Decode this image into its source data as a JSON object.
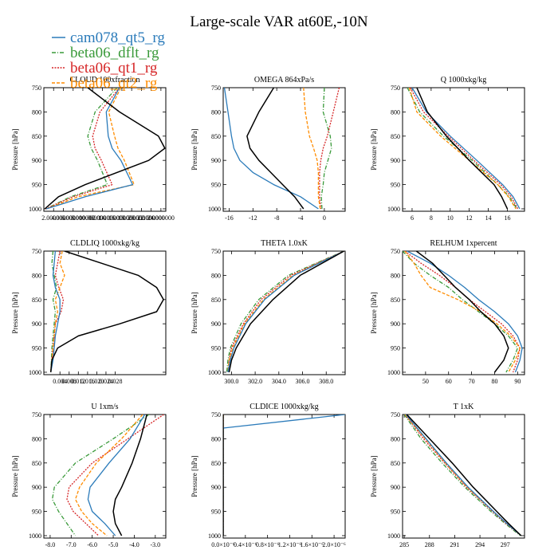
{
  "title": "Large-scale VAR at60E,-10N",
  "colors": {
    "cam078_qt5_rg": "#2b7bba",
    "beta06_dflt_rg": "#3a9a3a",
    "beta06_qt1_rg": "#d62728",
    "beta06_qt2_rg": "#ff8c00",
    "obs": "#000000"
  },
  "legend": [
    {
      "name": "cam078_qt5_rg",
      "color": "#2b7bba",
      "dash": ""
    },
    {
      "name": "beta06_dflt_rg",
      "color": "#3a9a3a",
      "dash": "5,2,1,2"
    },
    {
      "name": "beta06_qt1_rg",
      "color": "#d62728",
      "dash": "2,1.5"
    },
    {
      "name": "beta06_qt2_rg",
      "color": "#ff8c00",
      "dash": "4,2"
    }
  ],
  "chart_data": [
    {
      "type": "line",
      "title": "CLOUD  100xfraction",
      "ylabel": "Pressure [hPa]",
      "ylim": [
        1005,
        750
      ],
      "xlim": [
        0,
        2.5
      ],
      "xticks": [
        0.2,
        0.4,
        0.6,
        0.8,
        1.0,
        1.2,
        1.4,
        1.6,
        1.8,
        2.0,
        2.2,
        2.4
      ],
      "xticklabels": [
        "2.000000",
        "4.000000",
        "6.000000",
        "8.000000",
        "10.000000",
        "12.000000",
        "14.000000",
        "16.000000",
        "18.000000",
        "20.000000",
        "22.000000",
        "24.000000"
      ],
      "yticks": [
        750,
        800,
        850,
        900,
        950,
        1000
      ],
      "p": [
        750,
        800,
        850,
        875,
        900,
        950,
        975,
        1000
      ],
      "series": [
        {
          "name": "cam078_qt5_rg",
          "values": [
            1.55,
            1.28,
            1.32,
            1.4,
            1.58,
            1.82,
            0.85,
            0.05
          ]
        },
        {
          "name": "beta06_dflt_rg",
          "values": [
            1.5,
            1.05,
            0.9,
            0.97,
            1.1,
            1.3,
            0.55,
            0.04
          ]
        },
        {
          "name": "beta06_qt1_rg",
          "values": [
            1.55,
            1.15,
            1.0,
            1.05,
            1.18,
            1.4,
            0.6,
            0.04
          ]
        },
        {
          "name": "beta06_qt2_rg",
          "values": [
            1.58,
            1.33,
            1.45,
            1.52,
            1.65,
            1.85,
            0.7,
            0.05
          ]
        },
        {
          "name": "",
          "values": [
            0.9,
            1.55,
            2.35,
            2.48,
            2.15,
            0.85,
            0.3,
            0.02
          ]
        }
      ]
    },
    {
      "type": "line",
      "title": "OMEGA  864xPa/s",
      "ylabel": "Pressure [hPa]",
      "ylim": [
        1005,
        750
      ],
      "xlim": [
        -17,
        3.5
      ],
      "xticks": [
        -16,
        -12,
        -8,
        -4,
        0
      ],
      "xticklabels": [
        "-16",
        "-12",
        "-8",
        "-4",
        "0"
      ],
      "yticks": [
        750,
        800,
        850,
        900,
        950,
        1000
      ],
      "p": [
        750,
        800,
        850,
        875,
        900,
        925,
        950,
        975,
        1000
      ],
      "series": [
        {
          "name": "cam078_qt5_rg",
          "values": [
            -16.8,
            -16.2,
            -15.6,
            -15.2,
            -14.2,
            -12.0,
            -8.5,
            -4.0,
            -1.0
          ]
        },
        {
          "name": "beta06_dflt_rg",
          "values": [
            0.0,
            -0.2,
            1.0,
            1.2,
            0.6,
            0.0,
            -0.2,
            -0.5,
            -0.4
          ]
        },
        {
          "name": "beta06_qt1_rg",
          "values": [
            2.5,
            1.5,
            0.5,
            -0.2,
            -0.6,
            -0.8,
            -0.8,
            -0.8,
            -0.6
          ]
        },
        {
          "name": "beta06_qt2_rg",
          "values": [
            -3.5,
            -3.2,
            -2.5,
            -1.8,
            -1.2,
            -1.0,
            -1.0,
            -1.0,
            -0.7
          ]
        },
        {
          "name": "",
          "values": [
            -8.5,
            -11.0,
            -13.0,
            -12.5,
            -11.0,
            -9.0,
            -7.0,
            -5.0,
            -3.5
          ]
        }
      ]
    },
    {
      "type": "line",
      "title": "Q  1000xkg/kg",
      "ylabel": "Pressure [hPa]",
      "ylim": [
        1005,
        750
      ],
      "xlim": [
        5,
        17.8
      ],
      "xticks": [
        6,
        8,
        10,
        12,
        14,
        16
      ],
      "xticklabels": [
        "6",
        "8",
        "10",
        "12",
        "14",
        "16"
      ],
      "yticks": [
        750,
        800,
        850,
        900,
        950,
        1000
      ],
      "p": [
        750,
        800,
        850,
        900,
        950,
        975,
        1000
      ],
      "series": [
        {
          "name": "cam078_qt5_rg",
          "values": [
            6.0,
            7.5,
            10.0,
            12.8,
            15.5,
            16.6,
            17.3
          ]
        },
        {
          "name": "beta06_dflt_rg",
          "values": [
            5.5,
            6.8,
            9.3,
            12.3,
            15.0,
            16.2,
            17.0
          ]
        },
        {
          "name": "beta06_qt1_rg",
          "values": [
            5.8,
            7.2,
            9.8,
            12.5,
            15.3,
            16.4,
            17.1
          ]
        },
        {
          "name": "beta06_qt2_rg",
          "values": [
            5.7,
            6.5,
            9.0,
            12.0,
            15.0,
            16.1,
            16.9
          ]
        },
        {
          "name": "",
          "values": [
            6.5,
            7.6,
            9.6,
            12.0,
            14.6,
            15.4,
            16.0
          ]
        }
      ]
    },
    {
      "type": "line",
      "title": "CLDLIQ  1000xkg/kg",
      "ylabel": "Pressure [hPa]",
      "ylim": [
        1005,
        750
      ],
      "xlim": [
        -0.003,
        0.05
      ],
      "xticks": [
        0.004,
        0.008,
        0.012,
        0.016,
        0.02,
        0.024,
        0.028
      ],
      "xticklabels": [
        "0.004",
        "0.008",
        "0.012",
        "0.016",
        "0.020",
        "0.024",
        "0.028"
      ],
      "yticks": [
        750,
        800,
        850,
        900,
        950,
        1000
      ],
      "p": [
        750,
        775,
        800,
        825,
        850,
        875,
        900,
        925,
        950,
        975,
        1000
      ],
      "series": [
        {
          "name": "cam078_qt5_rg",
          "values": [
            0.002,
            0.0015,
            0.001,
            0.002,
            0.004,
            0.004,
            0.003,
            0.002,
            0.0015,
            0.001,
            0.0
          ]
        },
        {
          "name": "beta06_dflt_rg",
          "values": [
            0.001,
            0.0005,
            0.0015,
            0.0025,
            0.001,
            0.002,
            0.0015,
            0.001,
            0.0005,
            0.0003,
            0.0
          ]
        },
        {
          "name": "beta06_qt1_rg",
          "values": [
            0.004,
            0.003,
            0.002,
            0.0035,
            0.0055,
            0.0045,
            0.002,
            0.0015,
            0.001,
            0.0005,
            0.0
          ]
        },
        {
          "name": "beta06_qt2_rg",
          "values": [
            0.005,
            0.004,
            0.006,
            0.004,
            0.002,
            0.003,
            0.002,
            0.0015,
            0.001,
            0.0005,
            0.0
          ]
        },
        {
          "name": "",
          "values": [
            0.006,
            0.022,
            0.038,
            0.046,
            0.049,
            0.046,
            0.03,
            0.012,
            0.003,
            0.0005,
            0.0
          ]
        }
      ]
    },
    {
      "type": "line",
      "title": "THETA  1.0xK",
      "ylabel": "Pressure [hPa]",
      "ylim": [
        1005,
        750
      ],
      "xlim": [
        299.3,
        309.6
      ],
      "xticks": [
        300,
        302,
        304,
        306,
        308
      ],
      "xticklabels": [
        "300.0",
        "302.0",
        "304.0",
        "306.0",
        "308.0"
      ],
      "yticks": [
        750,
        800,
        850,
        900,
        950,
        1000
      ],
      "p": [
        750,
        800,
        850,
        900,
        950,
        975,
        1000
      ],
      "series": [
        {
          "name": "cam078_qt5_rg",
          "values": [
            309.5,
            305.3,
            302.8,
            301.2,
            300.2,
            299.9,
            299.7
          ]
        },
        {
          "name": "beta06_dflt_rg",
          "values": [
            309.5,
            304.8,
            302.3,
            300.8,
            299.9,
            299.7,
            299.6
          ]
        },
        {
          "name": "beta06_qt1_rg",
          "values": [
            309.5,
            305.0,
            302.5,
            301.0,
            300.0,
            299.8,
            299.7
          ]
        },
        {
          "name": "beta06_qt2_rg",
          "values": [
            309.5,
            305.2,
            302.7,
            301.1,
            300.1,
            299.8,
            299.7
          ]
        },
        {
          "name": "",
          "values": [
            309.5,
            305.8,
            303.5,
            301.6,
            300.4,
            300.0,
            299.8
          ]
        }
      ]
    },
    {
      "type": "line",
      "title": "RELHUM  1xpercent",
      "ylabel": "Pressure [hPa]",
      "ylim": [
        1005,
        750
      ],
      "xlim": [
        40,
        93
      ],
      "xticks": [
        50,
        60,
        70,
        80,
        90
      ],
      "xticklabels": [
        "50",
        "60",
        "70",
        "80",
        "90"
      ],
      "yticks": [
        750,
        800,
        850,
        900,
        950,
        1000
      ],
      "p": [
        750,
        775,
        800,
        825,
        850,
        875,
        900,
        925,
        950,
        975,
        1000
      ],
      "series": [
        {
          "name": "cam078_qt5_rg",
          "values": [
            42,
            52,
            60,
            67,
            73,
            80,
            86,
            90,
            92,
            91,
            89
          ]
        },
        {
          "name": "beta06_dflt_rg",
          "values": [
            40,
            45,
            52,
            60,
            66,
            73,
            80,
            86,
            90,
            88,
            85
          ]
        },
        {
          "name": "beta06_qt1_rg",
          "values": [
            41,
            48,
            56,
            63,
            69,
            76,
            83,
            88,
            91,
            90,
            88
          ]
        },
        {
          "name": "beta06_qt2_rg",
          "values": [
            41,
            45,
            48,
            52,
            64,
            74,
            81,
            87,
            91,
            89,
            86
          ]
        },
        {
          "name": "",
          "values": [
            46,
            53,
            58,
            63,
            69,
            74,
            80,
            84,
            86,
            84,
            80
          ]
        }
      ]
    },
    {
      "type": "line",
      "title": "U  1xm/s",
      "ylabel": "Pressure [hPa]",
      "ylim": [
        1005,
        750
      ],
      "xlim": [
        -8.3,
        -2.5
      ],
      "xticks": [
        -8,
        -7,
        -6,
        -5,
        -4,
        -3
      ],
      "xticklabels": [
        "-8.0",
        "-7.0",
        "-6.0",
        "-5.0",
        "-4.0",
        "-3.0"
      ],
      "yticks": [
        750,
        800,
        850,
        900,
        950,
        1000
      ],
      "p": [
        750,
        800,
        850,
        900,
        925,
        950,
        975,
        1000
      ],
      "series": [
        {
          "name": "cam078_qt5_rg",
          "values": [
            -3.5,
            -4.2,
            -5.2,
            -6.1,
            -6.2,
            -6.0,
            -5.4,
            -4.9
          ]
        },
        {
          "name": "beta06_dflt_rg",
          "values": [
            -3.3,
            -5.0,
            -6.8,
            -7.8,
            -7.9,
            -7.6,
            -7.2,
            -6.8
          ]
        },
        {
          "name": "beta06_qt1_rg",
          "values": [
            -2.6,
            -4.3,
            -6.0,
            -7.1,
            -7.2,
            -6.9,
            -6.3,
            -5.7
          ]
        },
        {
          "name": "beta06_qt2_rg",
          "values": [
            -3.6,
            -4.6,
            -5.8,
            -6.6,
            -6.8,
            -6.5,
            -6.0,
            -5.3
          ]
        },
        {
          "name": "",
          "values": [
            -3.4,
            -3.7,
            -4.1,
            -4.6,
            -4.9,
            -5.0,
            -4.9,
            -4.6
          ]
        }
      ]
    },
    {
      "type": "line",
      "title": "CLDICE  1000xkg/kg",
      "ylabel": "Pressure [hPa]",
      "ylim": [
        1005,
        750
      ],
      "xlim": [
        0,
        22
      ],
      "xticks": [
        0,
        4,
        8,
        12,
        16,
        20
      ],
      "xticklabels": [
        "0.0×10⁻⁶",
        "0.4×10⁻⁶",
        "0.8×10⁻⁶",
        "1.2×10⁻⁶",
        "1.6×10⁻⁶",
        "2.0×10⁻⁶"
      ],
      "yticks": [
        750,
        800,
        850,
        900,
        950,
        1000
      ],
      "p": [
        750,
        778,
        800,
        850,
        900,
        950,
        1000
      ],
      "series": [
        {
          "name": "cam078_qt5_rg",
          "values": [
            22,
            0,
            0,
            0,
            0,
            0,
            0
          ]
        },
        {
          "name": "beta06_dflt_rg",
          "values": [
            0,
            0,
            0,
            0,
            0,
            0,
            0
          ]
        },
        {
          "name": "beta06_qt1_rg",
          "values": [
            0,
            0,
            0,
            0,
            0,
            0,
            0
          ]
        },
        {
          "name": "beta06_qt2_rg",
          "values": [
            0,
            0,
            0,
            0,
            0,
            0,
            0
          ]
        },
        {
          "name": "",
          "values": [
            0,
            0,
            0,
            0,
            0,
            0,
            0
          ]
        }
      ]
    },
    {
      "type": "line",
      "title": "T  1xK",
      "ylabel": "Pressure [hPa]",
      "ylim": [
        1005,
        750
      ],
      "xlim": [
        284.8,
        299.3
      ],
      "xticks": [
        285,
        288,
        291,
        294,
        297
      ],
      "xticklabels": [
        "285",
        "288",
        "291",
        "294",
        "297"
      ],
      "yticks": [
        750,
        800,
        850,
        900,
        950,
        1000
      ],
      "p": [
        750,
        800,
        850,
        900,
        950,
        975,
        1000
      ],
      "series": [
        {
          "name": "cam078_qt5_rg",
          "values": [
            285.2,
            287.6,
            290.0,
            292.6,
            295.6,
            297.2,
            298.9
          ]
        },
        {
          "name": "beta06_dflt_rg",
          "values": [
            285.0,
            287.0,
            289.5,
            292.2,
            295.3,
            297.0,
            298.8
          ]
        },
        {
          "name": "beta06_qt1_rg",
          "values": [
            285.1,
            287.3,
            289.8,
            292.4,
            295.5,
            297.1,
            298.9
          ]
        },
        {
          "name": "beta06_qt2_rg",
          "values": [
            285.1,
            287.5,
            289.9,
            292.5,
            295.6,
            297.2,
            298.9
          ]
        },
        {
          "name": "",
          "values": [
            285.3,
            288.0,
            290.7,
            293.2,
            296.0,
            297.4,
            298.9
          ]
        }
      ]
    }
  ]
}
